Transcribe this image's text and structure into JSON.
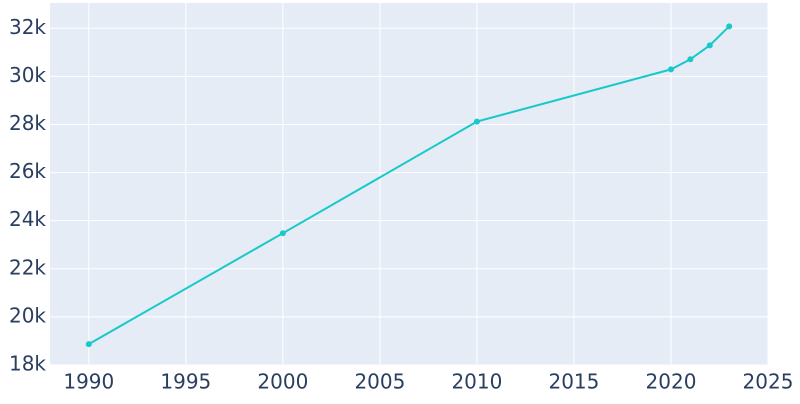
{
  "chart_data": {
    "type": "line",
    "x": [
      1990,
      2000,
      2010,
      2020,
      2021,
      2022,
      2023
    ],
    "series": [
      {
        "color": "#17c9c9",
        "values": [
          18870,
          23480,
          28120,
          30290,
          30710,
          31290,
          32080
        ]
      }
    ],
    "xlim": [
      1988,
      2025
    ],
    "xticks": [
      1990,
      1995,
      2000,
      2005,
      2010,
      2015,
      2020,
      2025
    ],
    "ylim": [
      18000,
      33050
    ],
    "yticks": [
      {
        "value": 18000,
        "label": "18k"
      },
      {
        "value": 20000,
        "label": "20k"
      },
      {
        "value": 22000,
        "label": "22k"
      },
      {
        "value": 24000,
        "label": "24k"
      },
      {
        "value": 26000,
        "label": "26k"
      },
      {
        "value": 28000,
        "label": "28k"
      },
      {
        "value": 30000,
        "label": "30k"
      },
      {
        "value": 32000,
        "label": "32k"
      }
    ],
    "grid": true
  }
}
